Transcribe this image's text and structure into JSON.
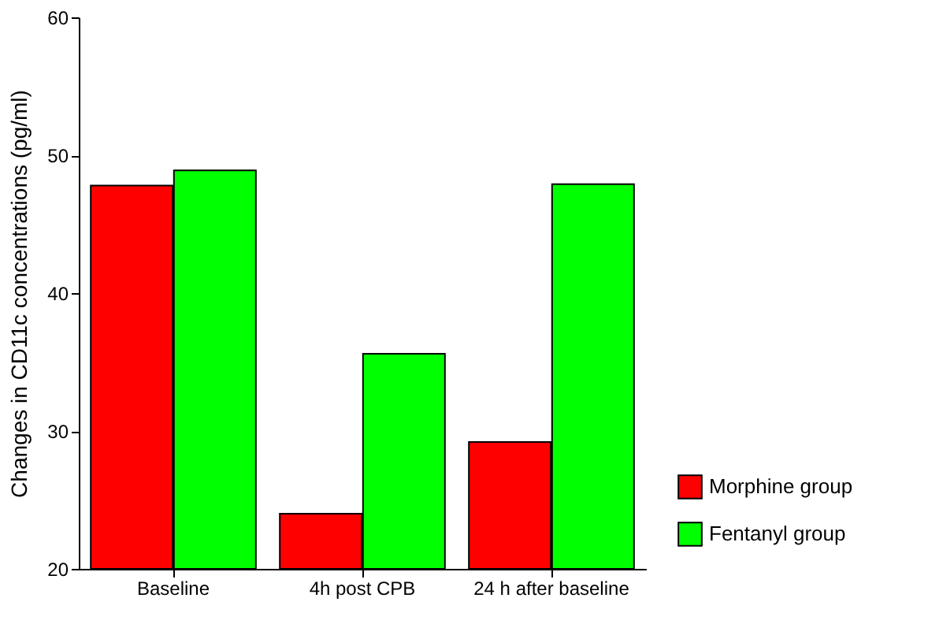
{
  "chart_data": {
    "type": "bar",
    "ylabel": "Changes in CD11c concentrations (pg/ml)",
    "categories": [
      "Baseline",
      "4h post CPB",
      "24 h after baseline"
    ],
    "series": [
      {
        "name": "Morphine group",
        "color": "#ff0000",
        "values": [
          47.8,
          24.0,
          29.2
        ]
      },
      {
        "name": "Fentanyl group",
        "color": "#00ff00",
        "values": [
          48.9,
          35.6,
          47.9
        ]
      }
    ],
    "ylim": [
      20,
      60
    ],
    "yticks": [
      20,
      30,
      40,
      50,
      60
    ],
    "grid": false,
    "legend": "bottom right"
  }
}
